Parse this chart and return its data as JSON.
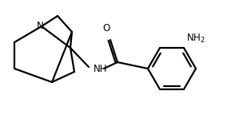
{
  "background_color": "#ffffff",
  "line_color": "#000000",
  "line_width": 1.6,
  "text_color": "#000000",
  "fig_width": 3.04,
  "fig_height": 1.58,
  "dpi": 100,
  "NH_label": "NH",
  "O_label": "O",
  "N_label": "N",
  "NH2_label": "NH$_2$",
  "font_size": 8.5,
  "font_size_small": 7.5
}
